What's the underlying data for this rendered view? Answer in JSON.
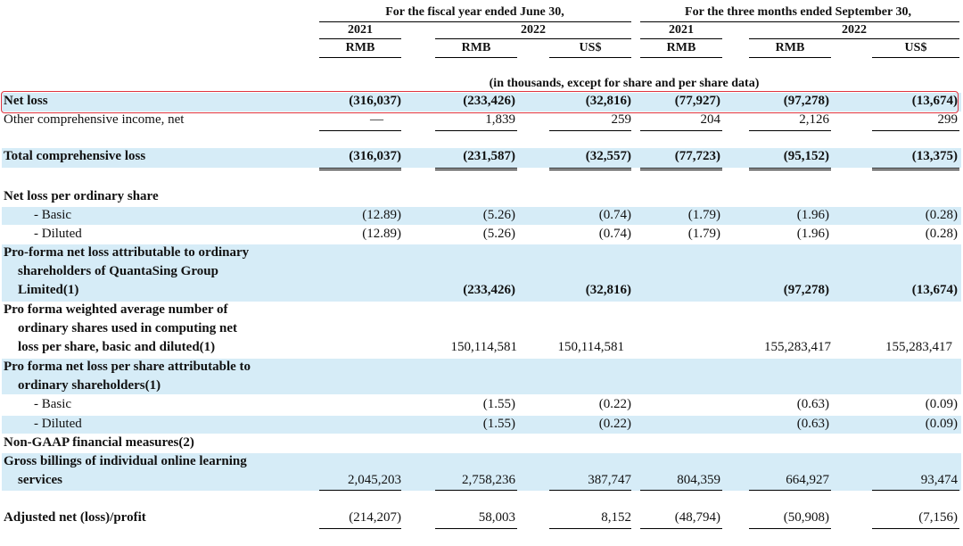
{
  "header": {
    "group1": "For the fiscal year ended June 30,",
    "group2": "For the three months ended September 30,",
    "year2021a": "2021",
    "year2022a": "2022",
    "year2021b": "2021",
    "year2022b": "2022",
    "currencies": [
      "RMB",
      "RMB",
      "US$",
      "RMB",
      "RMB",
      "US$"
    ],
    "note": "(in thousands, except for share and per share data)"
  },
  "rows": {
    "net_loss": {
      "label": "Net loss",
      "v": [
        "(316,037)",
        "(233,426)",
        "(32,816)",
        "(77,927)",
        "(97,278)",
        "(13,674)"
      ]
    },
    "oci": {
      "label": "Other comprehensive income, net",
      "v": [
        "—",
        "1,839",
        "259",
        "204",
        "2,126",
        "299"
      ]
    },
    "tcl": {
      "label": "Total comprehensive loss",
      "v": [
        "(316,037)",
        "(231,587)",
        "(32,557)",
        "(77,723)",
        "(95,152)",
        "(13,375)"
      ]
    },
    "nlps": {
      "label": "Net loss per ordinary share"
    },
    "basic": {
      "label": "- Basic",
      "v": [
        "(12.89)",
        "(5.26)",
        "(0.74)",
        "(1.79)",
        "(1.96)",
        "(0.28)"
      ]
    },
    "diluted": {
      "label": "- Diluted",
      "v": [
        "(12.89)",
        "(5.26)",
        "(0.74)",
        "(1.79)",
        "(1.96)",
        "(0.28)"
      ]
    },
    "pf_nl": {
      "l1": "Pro-forma net loss attributable to ordinary",
      "l2": "shareholders of QuantaSing Group",
      "l3": "Limited(1)",
      "v": [
        "",
        "(233,426)",
        "(32,816)",
        "",
        "(97,278)",
        "(13,674)"
      ]
    },
    "pf_wa": {
      "l1": "Pro forma weighted average number of",
      "l2": "ordinary shares used in computing net",
      "l3": "loss per share, basic and diluted(1)",
      "v": [
        "",
        "150,114,581",
        "150,114,581",
        "",
        "155,283,417",
        "155,283,417"
      ]
    },
    "pf_nlps": {
      "l1": "Pro forma net loss per share attributable to",
      "l2": "ordinary shareholders(1)"
    },
    "pf_basic": {
      "label": "- Basic",
      "v": [
        "",
        "(1.55)",
        "(0.22)",
        "",
        "(0.63)",
        "(0.09)"
      ]
    },
    "pf_diluted": {
      "label": "- Diluted",
      "v": [
        "",
        "(1.55)",
        "(0.22)",
        "",
        "(0.63)",
        "(0.09)"
      ]
    },
    "nongaap": {
      "label": "Non-GAAP financial measures(2)"
    },
    "gross": {
      "l1": "Gross billings of individual online learning",
      "l2": "services",
      "v": [
        "2,045,203",
        "2,758,236",
        "387,747",
        "804,359",
        "664,927",
        "93,474"
      ]
    },
    "adj": {
      "label": "Adjusted net (loss)/profit",
      "v": [
        "(214,207)",
        "58,003",
        "8,152",
        "(48,794)",
        "(50,908)",
        "(7,156)"
      ]
    }
  }
}
